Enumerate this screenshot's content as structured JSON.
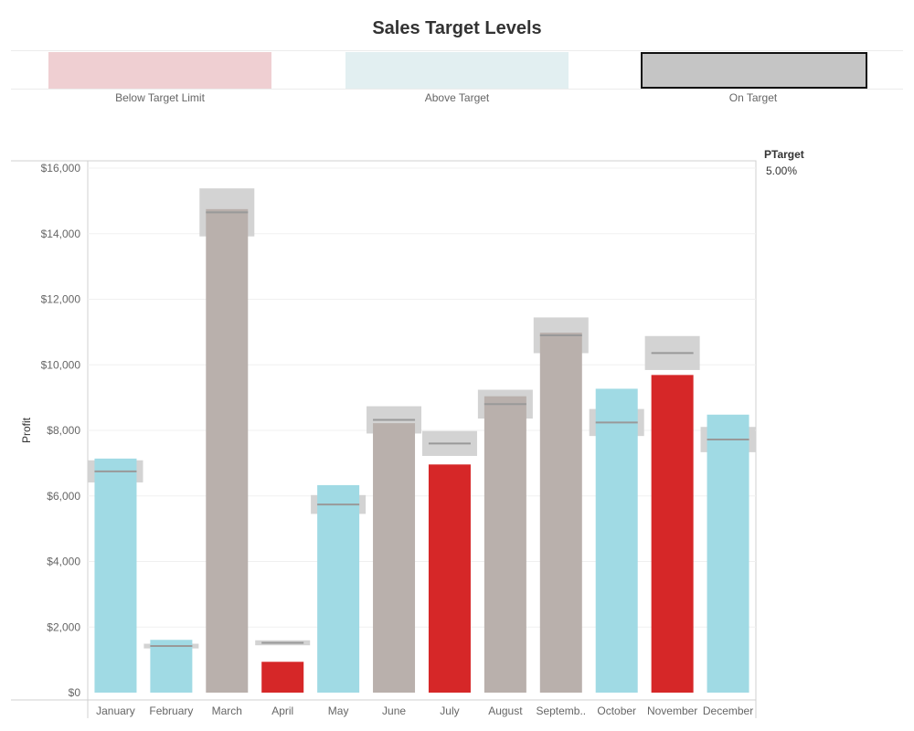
{
  "title": "Sales Target Levels",
  "legend": [
    {
      "label": "Below Target Limit",
      "color": "#efcfd2"
    },
    {
      "label": "Above Target",
      "color": "#e2eff1"
    },
    {
      "label": "On Target",
      "color": "#c5c5c5",
      "border": "#111111"
    }
  ],
  "parameter": {
    "name": "PTarget",
    "value": "5.00%"
  },
  "chart_data": {
    "type": "bar",
    "ylabel": "Profit",
    "xlabel": "",
    "ylim": [
      0,
      16000
    ],
    "yticks": [
      0,
      2000,
      4000,
      6000,
      8000,
      10000,
      12000,
      14000,
      16000
    ],
    "ytick_labels": [
      "$0",
      "$2,000",
      "$4,000",
      "$6,000",
      "$8,000",
      "$10,000",
      "$12,000",
      "$14,000",
      "$16,000"
    ],
    "categories": [
      "January",
      "February",
      "March",
      "April",
      "May",
      "June",
      "July",
      "August",
      "Septemb..",
      "October",
      "November",
      "December"
    ],
    "values": [
      7140,
      1610,
      14750,
      940,
      6330,
      8220,
      6960,
      9040,
      10980,
      9270,
      9690,
      8480
    ],
    "targets": [
      6750,
      1420,
      14650,
      1520,
      5740,
      8320,
      7600,
      8800,
      10900,
      8240,
      10360,
      7720
    ],
    "band_halfwidth_pct": 5,
    "status": [
      "above",
      "above",
      "on",
      "below",
      "above",
      "on",
      "below",
      "on",
      "on",
      "above",
      "below",
      "above"
    ],
    "colors": {
      "above": "#a0dae4",
      "below": "#d62728",
      "on": "#b9b0ac",
      "band": "#d3d3d3",
      "target_line": "#999999"
    },
    "grid": true
  }
}
